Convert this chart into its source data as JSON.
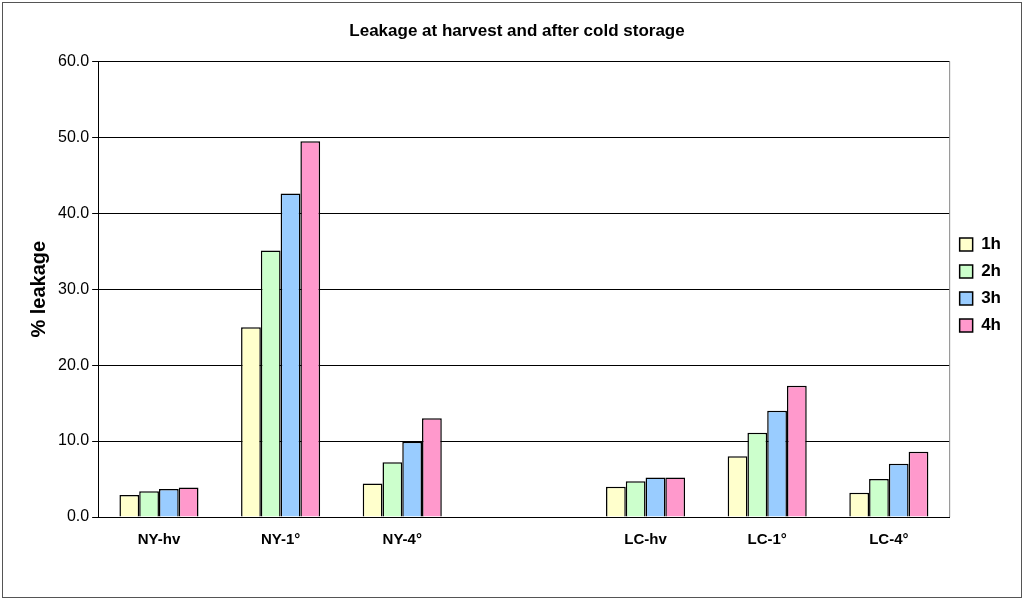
{
  "chart_data": {
    "type": "bar",
    "title": "Leakage at harvest and after cold storage",
    "ylabel": "% leakage",
    "categories": [
      "NY-hv",
      "NY-1°",
      "NY-4°",
      null,
      "LC-hv",
      "LC-1°",
      "LC-4°"
    ],
    "series": [
      {
        "name": "1h",
        "color": "#ffffcc",
        "values": [
          2.9,
          25.0,
          4.4,
          null,
          4.0,
          8.0,
          3.2
        ]
      },
      {
        "name": "2h",
        "color": "#ccffcc",
        "values": [
          3.4,
          35.1,
          7.2,
          null,
          4.7,
          11.1,
          5.0
        ]
      },
      {
        "name": "3h",
        "color": "#99ccff",
        "values": [
          3.7,
          42.6,
          9.9,
          null,
          5.2,
          14.0,
          7.0
        ]
      },
      {
        "name": "4h",
        "color": "#ff99cc",
        "values": [
          3.9,
          49.5,
          13.0,
          null,
          5.2,
          17.3,
          8.6
        ]
      }
    ],
    "ylim": [
      0,
      60
    ],
    "yticks": [
      {
        "value": 0,
        "label": "0.0"
      },
      {
        "value": 10,
        "label": "10.0"
      },
      {
        "value": 20,
        "label": "20.0"
      },
      {
        "value": 30,
        "label": "30.0"
      },
      {
        "value": 40,
        "label": "40.0"
      },
      {
        "value": 50,
        "label": "50.0"
      },
      {
        "value": 60,
        "label": "60.0"
      }
    ],
    "grid": "y",
    "legend": "right"
  }
}
